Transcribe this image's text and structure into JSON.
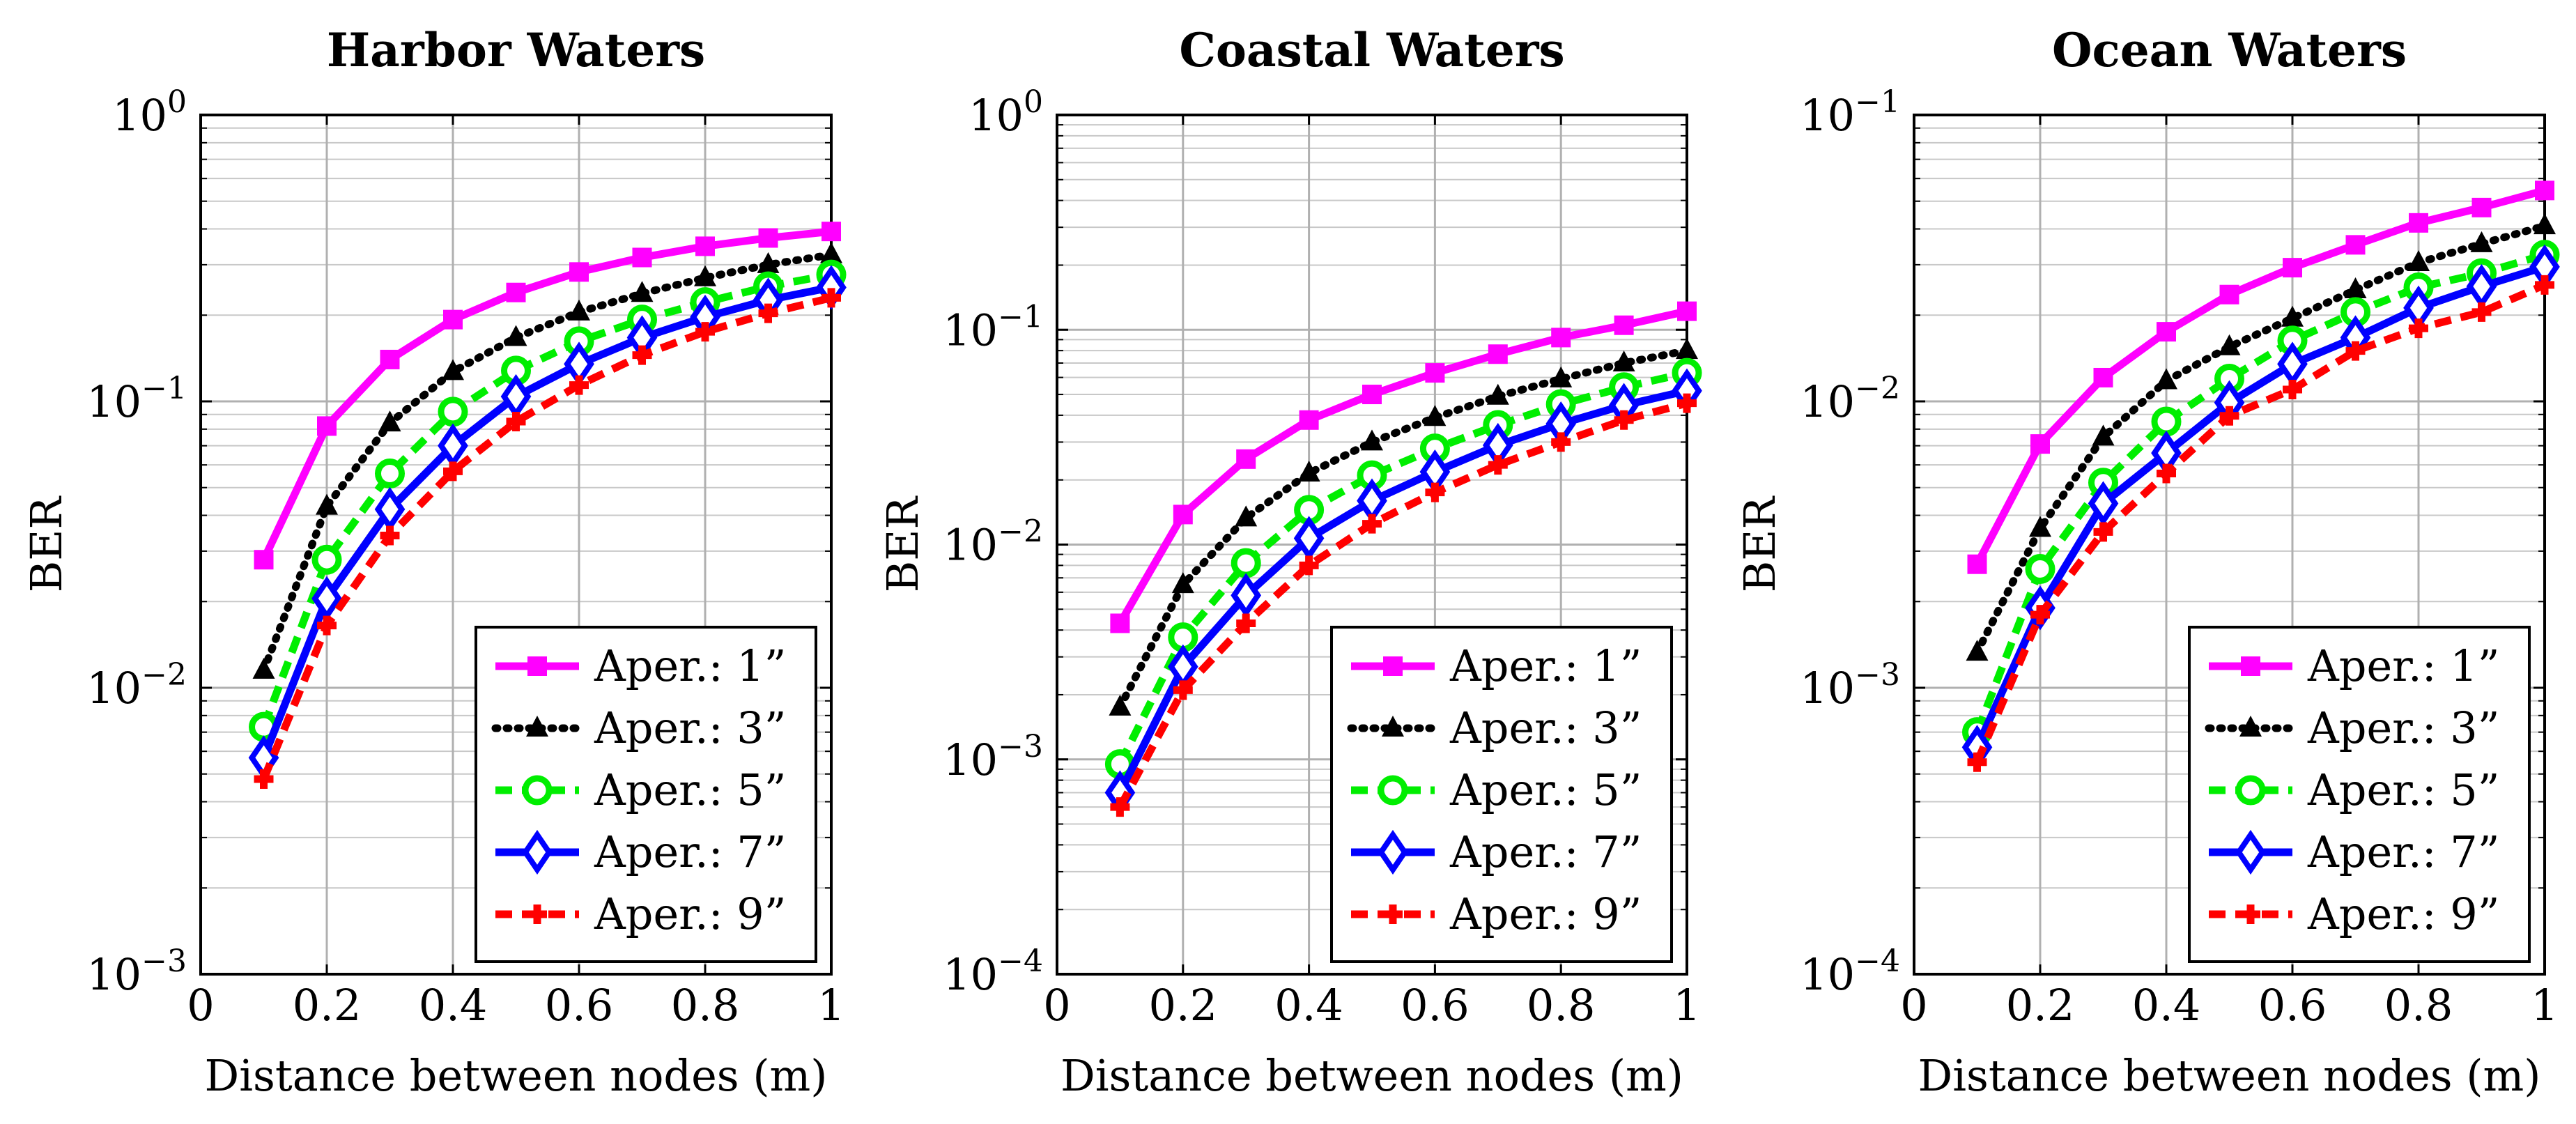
{
  "chart_data": [
    {
      "type": "line",
      "title": "Harbor Waters",
      "xlabel": "Distance between nodes (m)",
      "ylabel": "BER",
      "x_scale": "linear",
      "y_scale": "log",
      "xlim": [
        0,
        1
      ],
      "ylim": [
        0.001,
        1
      ],
      "x_ticks": [
        "0",
        "0.2",
        "0.4",
        "0.6",
        "0.8",
        "1"
      ],
      "x_tick_values": [
        0,
        0.2,
        0.4,
        0.6,
        0.8,
        1
      ],
      "y_ticks": [
        {
          "base": "10",
          "exp": "0",
          "value": 1
        },
        {
          "base": "10",
          "exp": "−1",
          "value": 0.1
        },
        {
          "base": "10",
          "exp": "−2",
          "value": 0.01
        },
        {
          "base": "10",
          "exp": "−3",
          "value": 0.001
        }
      ],
      "grid": true,
      "legend_position": "bottom-right",
      "x": [
        0.1,
        0.2,
        0.3,
        0.4,
        0.5,
        0.6,
        0.7,
        0.8,
        0.9,
        1.0
      ],
      "series": [
        {
          "name": "Aper.: 1”",
          "values": [
            0.028,
            0.082,
            0.14,
            0.193,
            0.24,
            0.283,
            0.318,
            0.348,
            0.372,
            0.392
          ]
        },
        {
          "name": "Aper.: 3”",
          "values": [
            0.0115,
            0.043,
            0.084,
            0.127,
            0.167,
            0.205,
            0.238,
            0.27,
            0.3,
            0.325
          ]
        },
        {
          "name": "Aper.: 5”",
          "values": [
            0.0073,
            0.028,
            0.056,
            0.092,
            0.128,
            0.162,
            0.193,
            0.222,
            0.252,
            0.277
          ]
        },
        {
          "name": "Aper.: 7”",
          "values": [
            0.0057,
            0.0205,
            0.042,
            0.07,
            0.104,
            0.135,
            0.167,
            0.197,
            0.226,
            0.25
          ]
        },
        {
          "name": "Aper.: 9”",
          "values": [
            0.0048,
            0.0165,
            0.034,
            0.057,
            0.085,
            0.114,
            0.145,
            0.175,
            0.203,
            0.23
          ]
        }
      ]
    },
    {
      "type": "line",
      "title": "Coastal Waters",
      "xlabel": "Distance between nodes (m)",
      "ylabel": "BER",
      "x_scale": "linear",
      "y_scale": "log",
      "xlim": [
        0,
        1
      ],
      "ylim": [
        0.0001,
        1
      ],
      "x_ticks": [
        "0",
        "0.2",
        "0.4",
        "0.6",
        "0.8",
        "1"
      ],
      "x_tick_values": [
        0,
        0.2,
        0.4,
        0.6,
        0.8,
        1
      ],
      "y_ticks": [
        {
          "base": "10",
          "exp": "0",
          "value": 1
        },
        {
          "base": "10",
          "exp": "−1",
          "value": 0.1
        },
        {
          "base": "10",
          "exp": "−2",
          "value": 0.01
        },
        {
          "base": "10",
          "exp": "−3",
          "value": 0.001
        },
        {
          "base": "10",
          "exp": "−4",
          "value": 0.0001
        }
      ],
      "grid": true,
      "legend_position": "bottom-right",
      "x": [
        0.1,
        0.2,
        0.3,
        0.4,
        0.5,
        0.6,
        0.7,
        0.8,
        0.9,
        1.0
      ],
      "series": [
        {
          "name": "Aper.: 1”",
          "values": [
            0.0043,
            0.0138,
            0.025,
            0.038,
            0.05,
            0.063,
            0.077,
            0.092,
            0.105,
            0.122
          ]
        },
        {
          "name": "Aper.: 3”",
          "values": [
            0.00175,
            0.0065,
            0.0133,
            0.0215,
            0.03,
            0.039,
            0.049,
            0.059,
            0.07,
            0.08
          ]
        },
        {
          "name": "Aper.: 5”",
          "values": [
            0.00095,
            0.0037,
            0.0082,
            0.0145,
            0.021,
            0.028,
            0.036,
            0.045,
            0.054,
            0.063
          ]
        },
        {
          "name": "Aper.: 7”",
          "values": [
            0.0007,
            0.0027,
            0.0058,
            0.0107,
            0.016,
            0.0218,
            0.029,
            0.0365,
            0.0445,
            0.052
          ]
        },
        {
          "name": "Aper.: 9”",
          "values": [
            0.0006,
            0.0021,
            0.0043,
            0.008,
            0.0125,
            0.0175,
            0.0235,
            0.03,
            0.038,
            0.0455
          ]
        }
      ]
    },
    {
      "type": "line",
      "title": "Ocean Waters",
      "xlabel": "Distance between nodes (m)",
      "ylabel": "BER",
      "x_scale": "linear",
      "y_scale": "log",
      "xlim": [
        0,
        1
      ],
      "ylim": [
        0.0001,
        0.1
      ],
      "x_ticks": [
        "0",
        "0.2",
        "0.4",
        "0.6",
        "0.8",
        "1"
      ],
      "x_tick_values": [
        0,
        0.2,
        0.4,
        0.6,
        0.8,
        1
      ],
      "y_ticks": [
        {
          "base": "10",
          "exp": "−1",
          "value": 0.1
        },
        {
          "base": "10",
          "exp": "−2",
          "value": 0.01
        },
        {
          "base": "10",
          "exp": "−3",
          "value": 0.001
        },
        {
          "base": "10",
          "exp": "−4",
          "value": 0.0001
        }
      ],
      "grid": true,
      "legend_position": "bottom-right",
      "x": [
        0.1,
        0.2,
        0.3,
        0.4,
        0.5,
        0.6,
        0.7,
        0.8,
        0.9,
        1.0
      ],
      "series": [
        {
          "name": "Aper.: 1”",
          "values": [
            0.0027,
            0.0071,
            0.0121,
            0.0175,
            0.0236,
            0.0293,
            0.0352,
            0.042,
            0.0475,
            0.0545
          ]
        },
        {
          "name": "Aper.: 3”",
          "values": [
            0.00133,
            0.0036,
            0.0075,
            0.0118,
            0.0155,
            0.0195,
            0.0245,
            0.0305,
            0.0355,
            0.041
          ]
        },
        {
          "name": "Aper.: 5”",
          "values": [
            0.0007,
            0.0026,
            0.0052,
            0.0085,
            0.012,
            0.0163,
            0.0205,
            0.025,
            0.028,
            0.0325
          ]
        },
        {
          "name": "Aper.: 7”",
          "values": [
            0.00062,
            0.0019,
            0.0044,
            0.0066,
            0.0099,
            0.0135,
            0.0167,
            0.0212,
            0.0252,
            0.0295
          ]
        },
        {
          "name": "Aper.: 9”",
          "values": [
            0.00055,
            0.0018,
            0.0035,
            0.0056,
            0.0089,
            0.011,
            0.015,
            0.018,
            0.0205,
            0.0255
          ]
        }
      ]
    }
  ],
  "series_styles": [
    {
      "color": "#ff00ff",
      "dash": "solid",
      "marker": "square"
    },
    {
      "color": "#000000",
      "dash": "dotted",
      "marker": "triangle"
    },
    {
      "color": "#00ee00",
      "dash": "dashed",
      "marker": "circle"
    },
    {
      "color": "#0000ff",
      "dash": "solid",
      "marker": "diamond"
    },
    {
      "color": "#ff0000",
      "dash": "dashed",
      "marker": "plus"
    }
  ]
}
